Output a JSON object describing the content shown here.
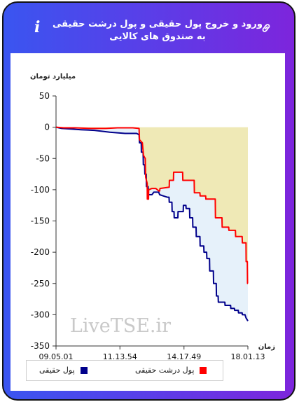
{
  "header": {
    "title": "ورود و خروج پول حقیقی و پول درشت حقیقی به صندوق های کالایی",
    "info_icon": "info-icon",
    "link_icon": "link-icon"
  },
  "watermark": "LiveTSE.ir",
  "colors": {
    "frame_start": "#3a55f0",
    "frame_end": "#7d25dc",
    "series_real": "#00008b",
    "series_big": "#ff0000",
    "fill_above": "#efe9b6",
    "fill_between": "#e6f1fa"
  },
  "chart_data": {
    "type": "line",
    "ylabel": "میلیارد تومان",
    "xlabel": "زمان",
    "ylim": [
      -350,
      50
    ],
    "yticks": [
      50,
      0,
      -50,
      -100,
      -150,
      -200,
      -250,
      -300,
      -350
    ],
    "xlim": [
      0,
      100
    ],
    "xticks": [
      {
        "x": 0,
        "label": "09.05.01"
      },
      {
        "x": 33.3,
        "label": "11.13.54"
      },
      {
        "x": 66.7,
        "label": "14.17.49"
      },
      {
        "x": 100,
        "label": "18.01.13"
      }
    ],
    "grid": false,
    "legend_position": "bottom",
    "series": [
      {
        "name": "پول حقیقی",
        "color": "#00008b",
        "points": [
          [
            0,
            0
          ],
          [
            3,
            -2
          ],
          [
            8,
            -3
          ],
          [
            13,
            -4
          ],
          [
            20,
            -5
          ],
          [
            28,
            -8
          ],
          [
            36,
            -10
          ],
          [
            42,
            -10
          ],
          [
            43.3,
            -12
          ],
          [
            43.5,
            -25
          ],
          [
            44.4,
            -25
          ],
          [
            44.5,
            -40
          ],
          [
            45.4,
            -40
          ],
          [
            45.5,
            -60
          ],
          [
            46.2,
            -60
          ],
          [
            46.3,
            -75
          ],
          [
            47,
            -75
          ],
          [
            47.1,
            -95
          ],
          [
            48,
            -95
          ],
          [
            48.1,
            -108
          ],
          [
            50,
            -108
          ],
          [
            51,
            -104
          ],
          [
            53.5,
            -104
          ],
          [
            54,
            -108
          ],
          [
            56,
            -110
          ],
          [
            58,
            -112
          ],
          [
            58.9,
            -112
          ],
          [
            59,
            -120
          ],
          [
            60.4,
            -120
          ],
          [
            60.5,
            -135
          ],
          [
            61.5,
            -135
          ],
          [
            61.6,
            -145
          ],
          [
            63.5,
            -145
          ],
          [
            63.6,
            -135
          ],
          [
            66.3,
            -135
          ],
          [
            66.4,
            -125
          ],
          [
            67.7,
            -125
          ],
          [
            67.8,
            -130
          ],
          [
            69.6,
            -130
          ],
          [
            69.7,
            -145
          ],
          [
            71.2,
            -145
          ],
          [
            71.3,
            -160
          ],
          [
            73,
            -160
          ],
          [
            73.1,
            -175
          ],
          [
            75,
            -175
          ],
          [
            75.1,
            -190
          ],
          [
            77,
            -190
          ],
          [
            77.1,
            -200
          ],
          [
            78.5,
            -200
          ],
          [
            78.6,
            -210
          ],
          [
            80,
            -210
          ],
          [
            80.1,
            -230
          ],
          [
            82,
            -230
          ],
          [
            82.1,
            -250
          ],
          [
            83.5,
            -250
          ],
          [
            83.6,
            -270
          ],
          [
            84.5,
            -270
          ],
          [
            84.6,
            -280
          ],
          [
            88,
            -280
          ],
          [
            88.1,
            -285
          ],
          [
            91,
            -285
          ],
          [
            91.1,
            -290
          ],
          [
            93,
            -290
          ],
          [
            93.1,
            -293
          ],
          [
            95,
            -293
          ],
          [
            95.1,
            -297
          ],
          [
            97,
            -297
          ],
          [
            97.1,
            -300
          ],
          [
            98.5,
            -300
          ],
          [
            99,
            -305
          ],
          [
            100,
            -310
          ]
        ]
      },
      {
        "name": "پول درشت حقیقی",
        "color": "#ff0000",
        "points": [
          [
            0,
            0
          ],
          [
            4,
            -1
          ],
          [
            10,
            -1
          ],
          [
            18,
            -2
          ],
          [
            26,
            -2
          ],
          [
            32,
            -1
          ],
          [
            40,
            -1
          ],
          [
            43.3,
            -2
          ],
          [
            43.5,
            -20
          ],
          [
            45,
            -25
          ],
          [
            45.6,
            -45
          ],
          [
            46.5,
            -50
          ],
          [
            46.7,
            -80
          ],
          [
            47.5,
            -90
          ],
          [
            47.6,
            -115
          ],
          [
            48.2,
            -115
          ],
          [
            48.3,
            -100
          ],
          [
            50,
            -98
          ],
          [
            52,
            -98
          ],
          [
            53.6,
            -102
          ],
          [
            54,
            -102
          ],
          [
            54.2,
            -98
          ],
          [
            59,
            -96
          ],
          [
            59.1,
            -85
          ],
          [
            61.2,
            -85
          ],
          [
            61.3,
            -72
          ],
          [
            66,
            -72
          ],
          [
            66.1,
            -85
          ],
          [
            72,
            -85
          ],
          [
            72.1,
            -105
          ],
          [
            75,
            -105
          ],
          [
            75.1,
            -110
          ],
          [
            78,
            -110
          ],
          [
            78.1,
            -115
          ],
          [
            83,
            -115
          ],
          [
            83.1,
            -145
          ],
          [
            86.5,
            -145
          ],
          [
            86.6,
            -160
          ],
          [
            90,
            -160
          ],
          [
            90.1,
            -165
          ],
          [
            93.5,
            -165
          ],
          [
            93.6,
            -175
          ],
          [
            97,
            -175
          ],
          [
            97.1,
            -185
          ],
          [
            99,
            -185
          ],
          [
            99.1,
            -215
          ],
          [
            99.7,
            -215
          ],
          [
            99.8,
            -250
          ],
          [
            100,
            -250
          ]
        ]
      }
    ]
  }
}
